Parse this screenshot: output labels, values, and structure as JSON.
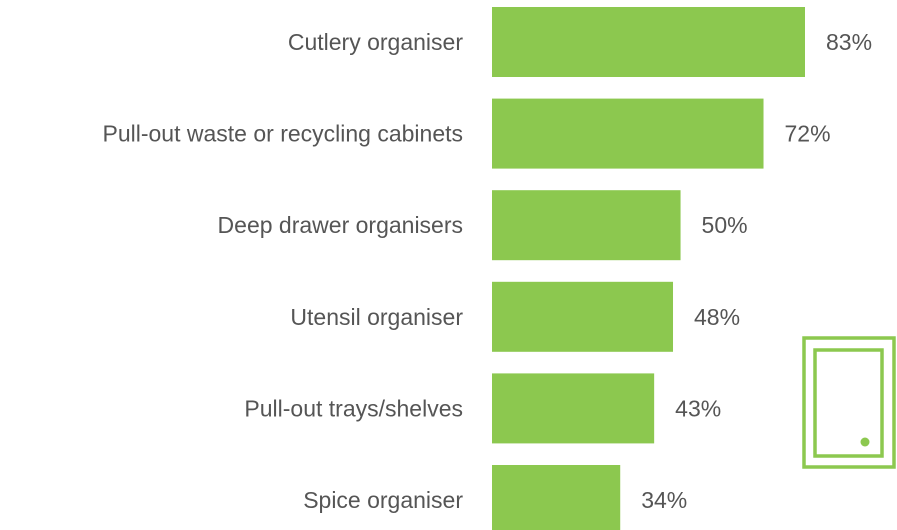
{
  "chart_data": {
    "type": "bar",
    "orientation": "horizontal",
    "categories": [
      "Cutlery organiser",
      "Pull-out waste or recycling cabinets",
      "Deep drawer organisers",
      "Utensil organiser",
      "Pull-out trays/shelves",
      "Spice organiser"
    ],
    "values": [
      83,
      72,
      50,
      48,
      43,
      34
    ],
    "value_labels": [
      "83%",
      "72%",
      "50%",
      "48%",
      "43%",
      "34%"
    ],
    "unit": "%",
    "title": "",
    "xlabel": "",
    "ylabel": "",
    "xlim": [
      0,
      100
    ],
    "grid": false,
    "legend": "none",
    "bar_color": "#8cc84f",
    "text_color": "#555555"
  },
  "decoration": {
    "icon": "cabinet-door-icon",
    "color": "#8cc84f"
  }
}
